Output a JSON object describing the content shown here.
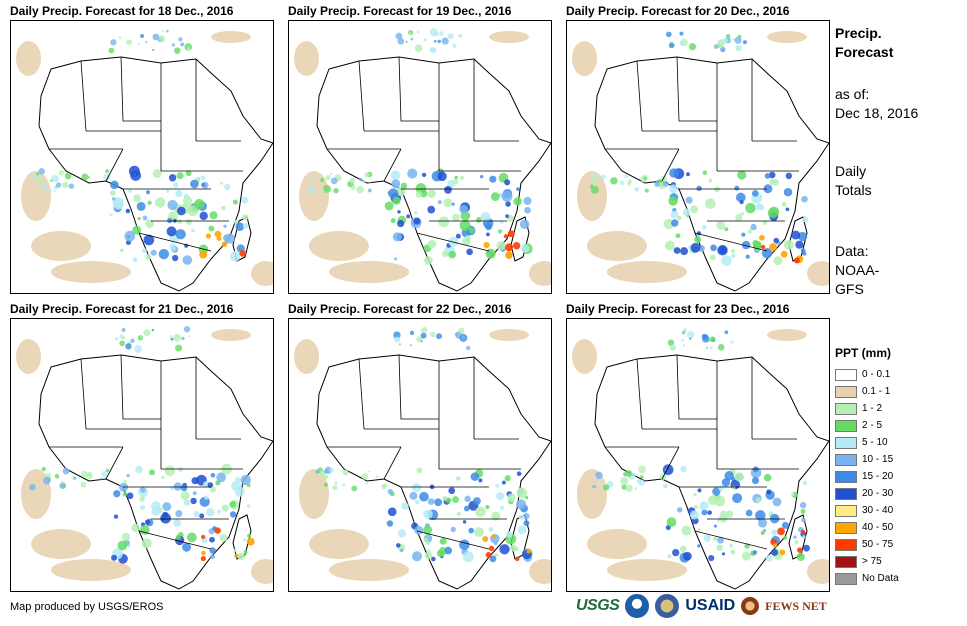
{
  "panels": [
    {
      "title": "Daily Precip. Forecast for 18 Dec., 2016"
    },
    {
      "title": "Daily Precip. Forecast for 19 Dec., 2016"
    },
    {
      "title": "Daily Precip. Forecast for 20 Dec., 2016"
    },
    {
      "title": "Daily Precip. Forecast for 21 Dec., 2016"
    },
    {
      "title": "Daily Precip. Forecast for 22 Dec., 2016"
    },
    {
      "title": "Daily Precip. Forecast for 23 Dec., 2016"
    }
  ],
  "side": {
    "title_line1": "Precip.",
    "title_line2": "Forecast",
    "asof_label": "as of:",
    "asof_date": "Dec 18, 2016",
    "totals_line1": "Daily",
    "totals_line2": "Totals",
    "data_line1": "Data:",
    "data_line2": "NOAA-",
    "data_line3": "GFS"
  },
  "legend": {
    "title": "PPT (mm)",
    "items": [
      {
        "label": "0 - 0.1",
        "color": "#ffffff"
      },
      {
        "label": "0.1 - 1",
        "color": "#e8d2b0"
      },
      {
        "label": "1 - 2",
        "color": "#b4f0b4"
      },
      {
        "label": "2 - 5",
        "color": "#64dc64"
      },
      {
        "label": "5 - 10",
        "color": "#b4ebf5"
      },
      {
        "label": "10 - 15",
        "color": "#78b4f0"
      },
      {
        "label": "15 - 20",
        "color": "#3c8ce6"
      },
      {
        "label": "20 - 30",
        "color": "#1e50d2"
      },
      {
        "label": "30 - 40",
        "color": "#ffeb82"
      },
      {
        "label": "40 - 50",
        "color": "#ffa500"
      },
      {
        "label": "50 - 75",
        "color": "#ff3c00"
      },
      {
        "label": "> 75",
        "color": "#a01414"
      },
      {
        "label": "No Data",
        "color": "#999999"
      }
    ]
  },
  "footer": {
    "credit": "Map produced by USGS/EROS",
    "logo_usgs": "USGS",
    "logo_usaid": "USAID",
    "logo_fews": "FEWS NET"
  }
}
